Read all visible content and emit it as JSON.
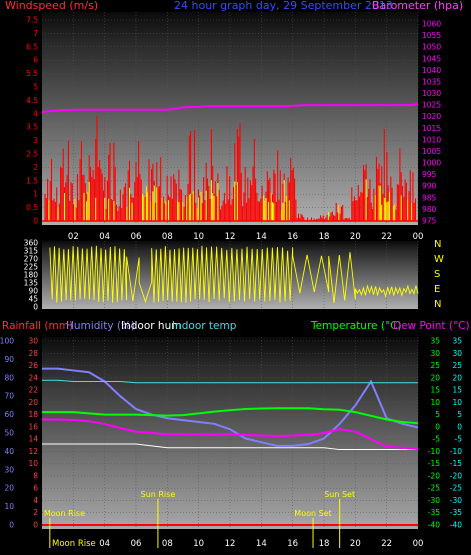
{
  "header": {
    "windspeed_label": "Windspeed (m/s)",
    "title": "24 hour graph day, 29 September 2013",
    "barometer_label": "Barometer (hpa)"
  },
  "middle": {
    "compass_letters": [
      "N",
      "W",
      "S",
      "E",
      "N"
    ]
  },
  "bottom_header": {
    "rainfall_label": "Rainfall (mm)",
    "humidity_label": "Humidity (%)",
    "indoor_hum_label": "Indoor hum",
    "indoor_temp_label": "Indoor temp",
    "temperature_label": "Temperature (°C)",
    "dewpoint_label": "Dew Point (°C)"
  },
  "annotations": {
    "sun_rise": "Sun Rise",
    "sun_set": "Sun Set",
    "moon_rise": "Moon Rise",
    "moon_set": "Moon Set"
  },
  "colors": {
    "wind": "#ff0000",
    "gust": "#ffff00",
    "barometer": "#ff00ff",
    "wind_direction": "#ffff00",
    "humidity": "#8080ff",
    "indoor_humidity": "#ffffff",
    "indoor_temp": "#40e0e0",
    "temperature": "#00ff00",
    "dew_point": "#ff00ff",
    "rainfall": "#ff0000",
    "annotation": "#ffff00",
    "axis_left_rain": "#ff4040",
    "axis_left_hum": "#8080ff",
    "axis_right_temp": "#00ff00",
    "axis_right_dew": "#00ffff",
    "axis_bar": "#ff00ff"
  },
  "chart_data": [
    {
      "type": "line",
      "x_label_ticks": [
        "02",
        "04",
        "06",
        "08",
        "10",
        "12",
        "14",
        "16",
        "18",
        "20",
        "22",
        "00"
      ],
      "x_hours": [
        0,
        0.5,
        1,
        1.5,
        2,
        2.5,
        3,
        3.5,
        4,
        4.5,
        5,
        5.5,
        6,
        6.5,
        7,
        7.5,
        8,
        8.5,
        9,
        9.5,
        10,
        10.5,
        11,
        11.5,
        12,
        12.5,
        13,
        13.5,
        14,
        14.5,
        15,
        15.5,
        16,
        16.5,
        17,
        17.5,
        18,
        18.5,
        19,
        19.5,
        20,
        20.5,
        21,
        21.5,
        22,
        22.5,
        23,
        23.5,
        24
      ],
      "left_axis": {
        "ylim": [
          0,
          7.5
        ],
        "ticks": [
          0,
          0.5,
          1,
          1.5,
          2,
          2.5,
          3,
          3.5,
          4,
          4.5,
          5,
          5.5,
          6,
          6.5,
          7,
          7.5
        ]
      },
      "right_axis": {
        "ylim": [
          975,
          1060
        ],
        "ticks": [
          975,
          980,
          985,
          990,
          995,
          1000,
          1005,
          1010,
          1015,
          1020,
          1025,
          1030,
          1035,
          1040,
          1045,
          1050,
          1055,
          1060
        ]
      },
      "series": [
        {
          "name": "Windspeed (m/s)",
          "axis": "left",
          "values": [
            1.2,
            2.0,
            1.5,
            2.6,
            1.1,
            2.2,
            1.8,
            2.9,
            1.4,
            2.4,
            1.0,
            1.7,
            2.3,
            1.2,
            1.9,
            2.7,
            1.3,
            2.1,
            1.6,
            2.5,
            1.0,
            1.8,
            2.6,
            1.2,
            2.0,
            2.8,
            1.5,
            2.3,
            1.1,
            1.9,
            2.4,
            1.3,
            2.0,
            0.2,
            0.1,
            0.1,
            0.2,
            0.3,
            0.5,
            0.1,
            1.6,
            2.2,
            1.2,
            1.9,
            2.5,
            1.4,
            2.1,
            1.5,
            0.9
          ]
        },
        {
          "name": "Barometer (hpa)",
          "axis": "right",
          "values": [
            1022,
            1022.4,
            1022.7,
            1022.9,
            1023,
            1023,
            1023,
            1023,
            1023,
            1023,
            1023,
            1023,
            1023,
            1023,
            1023,
            1023,
            1023,
            1023.5,
            1024,
            1024.2,
            1024.3,
            1024.5,
            1024.5,
            1024.5,
            1024.5,
            1024.5,
            1024.5,
            1024.5,
            1024.5,
            1024.5,
            1024.5,
            1024.5,
            1024.7,
            1024.9,
            1025,
            1025,
            1025,
            1025,
            1025,
            1025,
            1025,
            1025,
            1025,
            1025,
            1025,
            1025,
            1025,
            1025,
            1025.4
          ]
        }
      ]
    },
    {
      "type": "line",
      "x_label_ticks": [
        "02",
        "04",
        "06",
        "08",
        "10",
        "12",
        "14",
        "16",
        "18",
        "20",
        "22",
        "00"
      ],
      "ylim": [
        0,
        360
      ],
      "y_ticks": [
        0,
        45,
        90,
        135,
        180,
        225,
        270,
        315,
        360
      ],
      "series": [
        {
          "name": "Wind direction",
          "mode": "oscillating",
          "segments": [
            {
              "x_start": 0.5,
              "x_end": 5.4,
              "low": 20,
              "high": 345,
              "rate": 26
            },
            {
              "x_start": 5.4,
              "x_end": 6.2,
              "low": 30,
              "high": 300,
              "rate": 10
            },
            {
              "x_start": 6.2,
              "x_end": 7.0,
              "low": 10,
              "high": 150,
              "rate": 10
            },
            {
              "x_start": 7.0,
              "x_end": 10.5,
              "low": 20,
              "high": 345,
              "rate": 26
            },
            {
              "x_start": 10.5,
              "x_end": 16.0,
              "low": 25,
              "high": 340,
              "rate": 24
            },
            {
              "x_start": 16.0,
              "x_end": 18.3,
              "low": 60,
              "high": 300,
              "rate": 8
            },
            {
              "x_start": 18.3,
              "x_end": 20.0,
              "low": 20,
              "high": 310,
              "rate": 12
            },
            {
              "x_start": 20.0,
              "x_end": 24.0,
              "low": 60,
              "high": 120,
              "rate": 30
            }
          ]
        }
      ]
    },
    {
      "type": "line",
      "x_label_ticks": [
        "02",
        "04",
        "06",
        "08",
        "10",
        "12",
        "14",
        "16",
        "18",
        "20",
        "22",
        "00"
      ],
      "x_hours": [
        0,
        1,
        2,
        3,
        4,
        5,
        6,
        7,
        8,
        9,
        10,
        11,
        12,
        13,
        14,
        15,
        16,
        17,
        18,
        19,
        20,
        21,
        22,
        23,
        24
      ],
      "left_axis_rain": {
        "ylim": [
          0,
          30
        ],
        "ticks": [
          0,
          2,
          4,
          6,
          8,
          10,
          12,
          14,
          16,
          18,
          20,
          22,
          24,
          26,
          28,
          30
        ]
      },
      "left_axis_hum": {
        "ylim": [
          0,
          100
        ],
        "ticks": [
          0,
          10,
          20,
          30,
          40,
          50,
          60,
          70,
          80,
          90,
          100
        ]
      },
      "right_axis_temp": {
        "ylim": [
          -40,
          35
        ],
        "ticks": [
          -40,
          -35,
          -30,
          -25,
          -20,
          -15,
          -10,
          -5,
          0,
          5,
          10,
          15,
          20,
          25,
          30,
          35
        ]
      },
      "series": [
        {
          "name": "Humidity (%)",
          "axis": "hum",
          "values": [
            85,
            85,
            84,
            83,
            78,
            70,
            63,
            60,
            58,
            57,
            56,
            55,
            52,
            47,
            45,
            43,
            43,
            44,
            47,
            55,
            65,
            78,
            58,
            55,
            53
          ]
        },
        {
          "name": "Indoor hum",
          "axis": "hum",
          "values": [
            44,
            44,
            44,
            44,
            44,
            44,
            44,
            43,
            42,
            42,
            42,
            42,
            42,
            42,
            42,
            42,
            42,
            42,
            42,
            41,
            41,
            41,
            41,
            41,
            41
          ]
        },
        {
          "name": "Indoor temp",
          "axis": "temp",
          "values": [
            19,
            19,
            18.5,
            18.5,
            18.5,
            18.5,
            18,
            18,
            18,
            18,
            18,
            18,
            18,
            18,
            18,
            18,
            18,
            18,
            18,
            18,
            18,
            18,
            18,
            18,
            18
          ]
        },
        {
          "name": "Temperature (°C)",
          "axis": "temp",
          "values": [
            6,
            6,
            6,
            5.5,
            5,
            5,
            5,
            4.8,
            4.6,
            4.8,
            5.5,
            6.2,
            6.8,
            7.3,
            7.5,
            7.6,
            7.6,
            7.6,
            7.2,
            7,
            6,
            4.5,
            3,
            2,
            1.5
          ]
        },
        {
          "name": "Dew Point (°C)",
          "axis": "temp",
          "values": [
            3,
            3,
            2.8,
            2.3,
            1.2,
            -0.5,
            -2,
            -2.5,
            -3,
            -3.1,
            -3.1,
            -3.2,
            -3,
            -3.3,
            -3.5,
            -3.7,
            -3.5,
            -3.3,
            -2.5,
            -1,
            -2,
            -5,
            -8,
            -8.5,
            -9
          ]
        },
        {
          "name": "Rainfall (mm)",
          "axis": "rain",
          "values": [
            0,
            0,
            0,
            0,
            0,
            0,
            0,
            0,
            0,
            0,
            0,
            0,
            0,
            0,
            0,
            0,
            0,
            0,
            0,
            0,
            0,
            0,
            0,
            0,
            0
          ]
        }
      ],
      "events": [
        {
          "label_key": "sun_rise",
          "hour": 7.4
        },
        {
          "label_key": "sun_set",
          "hour": 19.0
        },
        {
          "label_key": "moon_rise",
          "hour": 0.5
        },
        {
          "label_key": "moon_set",
          "hour": 17.3
        }
      ]
    }
  ]
}
